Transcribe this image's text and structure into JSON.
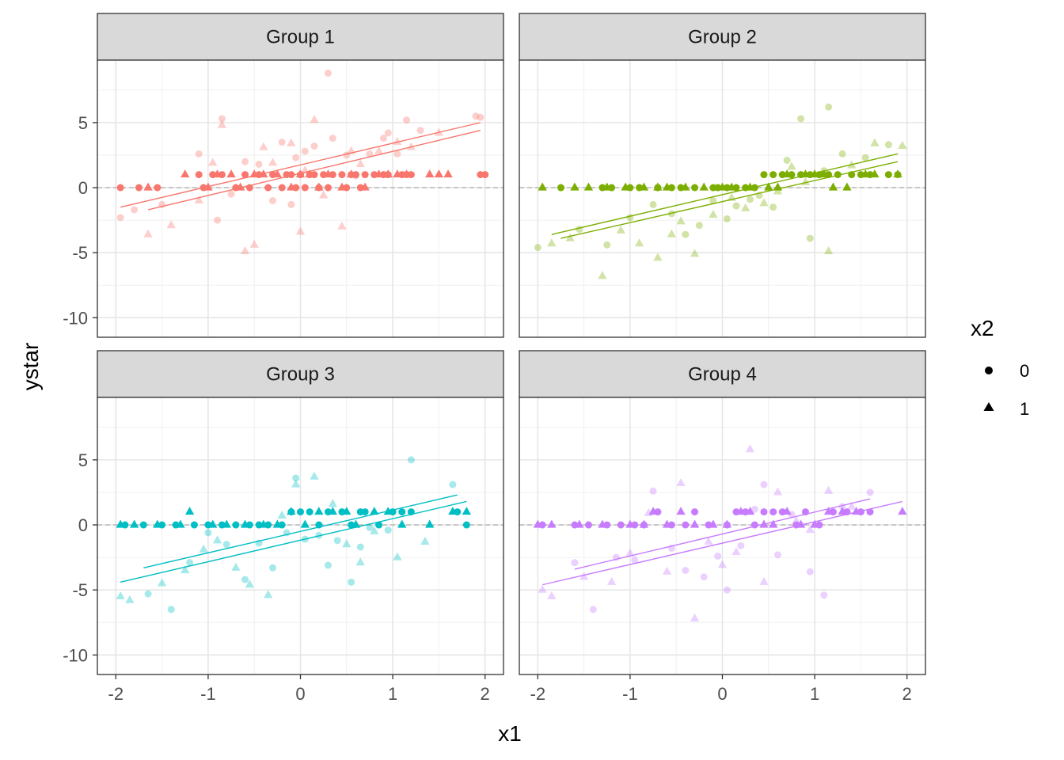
{
  "chart_data": {
    "type": "scatter",
    "xlabel": "x1",
    "ylabel": "ystar",
    "xlim": [
      -2.2,
      2.2
    ],
    "ylim": [
      -11.5,
      9.8
    ],
    "x_ticks": [
      -2,
      -1,
      0,
      1,
      2
    ],
    "x_tick_labels": [
      "-2",
      "-1",
      "0",
      "1",
      "2"
    ],
    "y_ticks": [
      -10,
      -5,
      0,
      5
    ],
    "y_tick_labels": [
      "-10",
      "-5",
      "0",
      "5"
    ],
    "grid": true,
    "reference_line_y": 0,
    "legend": {
      "title": "x2",
      "position": "right",
      "entries": [
        {
          "label": "0",
          "shape": "circle"
        },
        {
          "label": "1",
          "shape": "triangle"
        }
      ]
    },
    "panels": [
      {
        "strip": "Group 1",
        "color": "#F8766D",
        "fit_lines": [
          {
            "x2": "0",
            "x": [
              -1.95,
              1.95
            ],
            "y": [
              -1.5,
              5.0
            ]
          },
          {
            "x2": "1",
            "x": [
              -1.65,
              1.95
            ],
            "y": [
              -1.7,
              4.4
            ]
          }
        ],
        "observed": {
          "x0": [
            -1.95,
            -1.75,
            -1.55,
            -1.1,
            -1.05,
            -0.95,
            -0.85,
            -0.7,
            -0.6,
            -0.55,
            -0.45,
            -0.35,
            -0.3,
            -0.2,
            -0.15,
            -0.1,
            -0.05,
            0.0,
            0.05,
            0.1,
            0.15,
            0.2,
            0.25,
            0.3,
            0.35,
            0.45,
            0.5,
            0.55,
            0.6,
            0.65,
            0.7,
            0.8,
            0.9,
            0.95,
            1.1,
            1.15,
            1.2,
            1.95,
            2.0
          ],
          "y0": [
            0,
            0,
            0,
            1,
            0,
            1,
            1,
            0,
            1,
            0,
            1,
            0,
            1,
            0,
            1,
            1,
            0,
            1,
            0,
            1,
            1,
            0,
            1,
            0,
            1,
            1,
            0,
            1,
            1,
            0,
            1,
            1,
            1,
            1,
            1,
            1,
            1,
            1,
            1
          ],
          "x1": [
            -1.65,
            -1.25,
            -1.0,
            -0.9,
            -0.75,
            -0.65,
            -0.5,
            -0.4,
            -0.25,
            -0.1,
            0.0,
            0.1,
            0.2,
            0.3,
            0.45,
            0.55,
            0.7,
            0.85,
            0.95,
            1.05,
            1.15,
            1.4,
            1.5,
            1.6
          ],
          "y1": [
            0,
            1,
            0,
            1,
            1,
            0,
            1,
            1,
            1,
            0,
            1,
            1,
            0,
            1,
            0,
            1,
            0,
            1,
            1,
            1,
            1,
            1,
            1,
            1
          ]
        },
        "latent": {
          "x0": [
            -1.95,
            -1.8,
            -1.5,
            -1.1,
            -0.9,
            -0.85,
            -0.75,
            -0.6,
            -0.45,
            -0.3,
            -0.2,
            -0.1,
            -0.05,
            0.05,
            0.15,
            0.3,
            0.35,
            0.5,
            0.6,
            0.75,
            0.9,
            0.95,
            1.05,
            1.15,
            1.3,
            1.9,
            1.95
          ],
          "y0": [
            -2.3,
            -1.7,
            -1.3,
            2.6,
            -2.5,
            5.3,
            -0.5,
            2.0,
            1.8,
            -1.0,
            3.5,
            -1.3,
            2.3,
            2.8,
            3.2,
            8.8,
            3.8,
            2.5,
            0.9,
            2.6,
            3.8,
            4.2,
            2.6,
            5.2,
            4.4,
            5.5,
            5.4
          ],
          "x1": [
            -1.65,
            -1.4,
            -1.1,
            -0.95,
            -0.85,
            -0.6,
            -0.5,
            -0.4,
            -0.3,
            -0.1,
            0.0,
            0.05,
            0.15,
            0.25,
            0.45,
            0.55,
            0.65,
            0.85,
            1.05,
            1.2,
            1.5
          ],
          "y1": [
            -3.6,
            -2.9,
            -1.0,
            1.9,
            4.8,
            -4.9,
            -4.4,
            3.1,
            1.9,
            3.4,
            -3.4,
            1.3,
            5.2,
            -0.6,
            -3.0,
            2.8,
            1.8,
            2.8,
            3.5,
            3.1,
            4.2
          ]
        }
      },
      {
        "strip": "Group 2",
        "color": "#7CAE00",
        "fit_lines": [
          {
            "x2": "0",
            "x": [
              -1.85,
              1.9
            ],
            "y": [
              -3.6,
              2.6
            ]
          },
          {
            "x2": "1",
            "x": [
              -1.75,
              1.9
            ],
            "y": [
              -3.9,
              2.0
            ]
          }
        ],
        "observed": {
          "x0": [
            -1.75,
            -1.3,
            -1.2,
            -1.0,
            -0.9,
            -0.7,
            -0.55,
            -0.45,
            -0.3,
            -0.1,
            -0.05,
            0.05,
            0.15,
            0.25,
            0.35,
            0.45,
            0.55,
            0.65,
            0.75,
            0.85,
            0.95,
            1.05,
            1.15,
            1.25,
            1.4,
            1.5,
            1.6,
            1.8,
            1.9
          ],
          "y0": [
            0,
            0,
            0,
            0,
            0,
            0,
            0,
            0,
            0,
            0,
            0,
            0,
            0,
            0,
            0,
            1,
            1,
            1,
            1,
            1,
            1,
            1,
            1,
            1,
            1,
            1,
            1,
            1,
            1
          ],
          "x1": [
            -1.95,
            -1.6,
            -1.45,
            -1.25,
            -1.05,
            -0.85,
            -0.7,
            -0.6,
            -0.4,
            -0.2,
            0.0,
            0.1,
            0.3,
            0.5,
            0.6,
            0.7,
            0.9,
            1.0,
            1.1,
            1.2,
            1.35,
            1.55,
            1.65,
            1.9
          ],
          "y1": [
            0,
            0,
            0,
            0,
            0,
            0,
            0,
            0,
            0,
            0,
            0,
            0,
            0,
            0,
            0,
            1,
            1,
            1,
            1,
            0,
            0,
            1,
            1,
            1
          ]
        },
        "latent": {
          "x0": [
            -2.0,
            -1.55,
            -1.25,
            -1.0,
            -0.75,
            -0.55,
            -0.4,
            -0.25,
            -0.1,
            0.05,
            0.15,
            0.3,
            0.4,
            0.55,
            0.65,
            0.7,
            0.85,
            0.95,
            1.1,
            1.15,
            1.3,
            1.55,
            1.8
          ],
          "y0": [
            -4.6,
            -3.2,
            -4.4,
            -2.3,
            -1.3,
            -2.0,
            -3.6,
            -2.9,
            -1.0,
            -2.4,
            -1.4,
            -0.9,
            -0.6,
            -1.5,
            1.0,
            2.1,
            5.3,
            -3.9,
            1.3,
            6.2,
            2.6,
            2.3,
            3.3
          ],
          "x1": [
            -1.85,
            -1.65,
            -1.3,
            -1.1,
            -0.9,
            -0.7,
            -0.55,
            -0.45,
            -0.3,
            -0.1,
            0.1,
            0.25,
            0.45,
            0.6,
            0.75,
            0.9,
            1.15,
            1.4,
            1.65,
            1.95
          ],
          "y1": [
            -4.3,
            -3.9,
            -6.8,
            -3.3,
            -4.3,
            -5.4,
            -3.6,
            -2.6,
            -5.1,
            -2.1,
            -0.8,
            -1.6,
            -1.2,
            -0.3,
            1.6,
            0.4,
            -4.9,
            1.7,
            3.4,
            3.2
          ]
        }
      },
      {
        "strip": "Group 3",
        "color": "#00BFC4",
        "fit_lines": [
          {
            "x2": "0",
            "x": [
              -1.7,
              1.7
            ],
            "y": [
              -3.3,
              2.3
            ]
          },
          {
            "x2": "1",
            "x": [
              -1.95,
              1.8
            ],
            "y": [
              -4.4,
              1.8
            ]
          }
        ],
        "observed": {
          "x0": [
            -1.9,
            -1.7,
            -1.5,
            -1.35,
            -1.15,
            -1.0,
            -0.85,
            -0.7,
            -0.55,
            -0.45,
            -0.35,
            -0.2,
            -0.1,
            0.0,
            0.1,
            0.2,
            0.3,
            0.45,
            0.55,
            0.65,
            0.7,
            0.85,
            1.0,
            1.1,
            1.2,
            1.7,
            1.8
          ],
          "y0": [
            0,
            0,
            0,
            0,
            0,
            0,
            0,
            0,
            0,
            0,
            0,
            0,
            1,
            1,
            1,
            0,
            1,
            1,
            0,
            1,
            1,
            0,
            1,
            1,
            1,
            1,
            0
          ],
          "x1": [
            -1.95,
            -1.8,
            -1.55,
            -1.3,
            -1.2,
            -0.95,
            -0.8,
            -0.6,
            -0.4,
            -0.25,
            -0.1,
            0.05,
            0.2,
            0.35,
            0.5,
            0.6,
            0.8,
            0.95,
            1.1,
            1.4,
            1.65,
            1.8
          ],
          "y1": [
            0,
            0,
            0,
            0,
            1,
            0,
            0,
            0,
            0,
            0,
            1,
            0,
            1,
            1,
            1,
            0,
            1,
            1,
            0,
            0,
            1,
            1
          ]
        },
        "latent": {
          "x0": [
            -1.65,
            -1.4,
            -1.2,
            -1.0,
            -0.8,
            -0.6,
            -0.45,
            -0.3,
            -0.15,
            -0.05,
            0.05,
            0.2,
            0.3,
            0.4,
            0.55,
            0.65,
            0.75,
            0.95,
            1.2,
            1.65
          ],
          "y0": [
            -5.3,
            -6.5,
            -2.9,
            -0.6,
            -1.5,
            -4.2,
            -1.4,
            -3.3,
            -0.6,
            3.6,
            -1.1,
            -0.8,
            -3.1,
            -1.2,
            -4.4,
            -1.7,
            -0.2,
            -0.4,
            5.0,
            3.1
          ],
          "x1": [
            -1.95,
            -1.85,
            -1.5,
            -1.25,
            -1.05,
            -0.9,
            -0.7,
            -0.55,
            -0.35,
            -0.2,
            -0.05,
            0.15,
            0.35,
            0.5,
            0.65,
            0.8,
            1.05,
            1.35
          ],
          "y1": [
            -5.5,
            -5.8,
            -4.5,
            -3.5,
            -1.9,
            -1.2,
            -3.3,
            -4.6,
            -5.4,
            0.7,
            3.1,
            3.7,
            1.6,
            -1.5,
            -2.9,
            -0.5,
            -2.5,
            -1.3
          ]
        }
      },
      {
        "strip": "Group 4",
        "color": "#C77CFF",
        "fit_lines": [
          {
            "x2": "0",
            "x": [
              -1.6,
              1.6
            ],
            "y": [
              -3.4,
              2.0
            ]
          },
          {
            "x2": "1",
            "x": [
              -1.95,
              1.95
            ],
            "y": [
              -4.6,
              1.8
            ]
          }
        ],
        "observed": {
          "x0": [
            -1.95,
            -1.6,
            -1.45,
            -1.25,
            -1.1,
            -0.95,
            -0.85,
            -0.7,
            -0.55,
            -0.4,
            -0.3,
            -0.15,
            0.05,
            0.15,
            0.25,
            0.35,
            0.45,
            0.55,
            0.65,
            0.8,
            0.9,
            1.05,
            1.2,
            1.35,
            1.5,
            1.6
          ],
          "y0": [
            0,
            0,
            0,
            0,
            0,
            0,
            0,
            1,
            0,
            0,
            1,
            0,
            0,
            1,
            1,
            0,
            1,
            1,
            1,
            0,
            1,
            0,
            1,
            1,
            1,
            1
          ],
          "x1": [
            -2.0,
            -1.85,
            -1.55,
            -1.3,
            -1.0,
            -0.85,
            -0.75,
            -0.6,
            -0.45,
            -0.3,
            -0.1,
            0.05,
            0.2,
            0.3,
            0.45,
            0.55,
            0.7,
            0.85,
            1.0,
            1.15,
            1.3,
            1.45,
            1.95
          ],
          "y1": [
            0,
            0,
            0,
            0,
            0,
            0,
            1,
            0,
            1,
            0,
            0,
            0,
            1,
            1,
            0,
            0,
            1,
            0,
            0,
            1,
            1,
            1,
            1
          ]
        },
        "latent": {
          "x0": [
            -1.6,
            -1.4,
            -1.15,
            -0.95,
            -0.75,
            -0.55,
            -0.4,
            -0.2,
            -0.05,
            0.05,
            0.2,
            0.35,
            0.45,
            0.6,
            0.75,
            0.95,
            1.1,
            1.3,
            1.6
          ],
          "y0": [
            -2.9,
            -6.5,
            -2.5,
            -2.7,
            2.6,
            -1.8,
            -3.5,
            -4.0,
            -2.4,
            -5.0,
            -1.6,
            1.2,
            3.1,
            -2.3,
            0.8,
            -3.6,
            -5.4,
            1.4,
            2.5
          ],
          "x1": [
            -1.95,
            -1.85,
            -1.5,
            -1.2,
            -1.0,
            -0.8,
            -0.6,
            -0.45,
            -0.3,
            -0.15,
            0.0,
            0.15,
            0.3,
            0.45,
            0.6,
            0.8,
            0.95,
            1.15,
            1.4
          ],
          "y1": [
            -5.0,
            -5.5,
            -4.0,
            -4.4,
            -2.2,
            0.9,
            -3.6,
            3.2,
            -7.2,
            -1.3,
            -3.1,
            -2.1,
            5.8,
            -4.4,
            2.5,
            0.3,
            -0.4,
            2.6,
            1.4
          ]
        }
      }
    ]
  }
}
